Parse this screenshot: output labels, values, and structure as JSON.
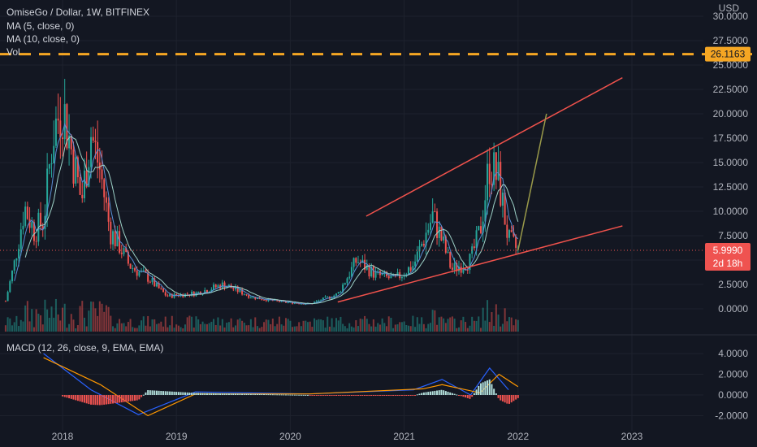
{
  "header": {
    "symbol_line": "OmiseGo / Dollar, 1W, BITFINEX",
    "ma5_label": "MA (5, close, 0)",
    "ma10_label": "MA (10, close, 0)",
    "vol_label": "Vol",
    "currency": "USD"
  },
  "macd": {
    "label": "MACD (12, 26, close, 9, EMA, EMA)"
  },
  "price_tags": {
    "level_value": "26.1163",
    "last_price": "5.9990",
    "countdown": "2d 18h"
  },
  "colors": {
    "background": "#131722",
    "up": "#26a69a",
    "down": "#ef5350",
    "ma5": "#5a8fd6",
    "ma10": "#9ed2c8",
    "level": "#f5a623",
    "trendline": "#f0524c",
    "projection": "#9a9a4a",
    "macd_line": "#2962ff",
    "signal_line": "#ff9800",
    "hist_pos": "#b2dfdb",
    "hist_neg": "#ef5350"
  },
  "chart_data": [
    {
      "type": "candlestick",
      "title": "OmiseGo / Dollar, 1W, BITFINEX",
      "x_axis": {
        "ticks": [
          "2018",
          "2019",
          "2020",
          "2021",
          "2022",
          "2023"
        ]
      },
      "y_axis": {
        "unit": "USD",
        "ticks": [
          "30.0000",
          "27.5000",
          "25.0000",
          "22.5000",
          "20.0000",
          "17.5000",
          "15.0000",
          "12.5000",
          "10.0000",
          "7.5000",
          "5.0000",
          "2.5000",
          "0.0000"
        ],
        "range": [
          -1.2,
          30.5
        ]
      },
      "series": [
        {
          "name": "OMG/USD weekly close",
          "points": [
            [
              "2017-07",
              0.8
            ],
            [
              "2017-08",
              5.0
            ],
            [
              "2017-09",
              10.5
            ],
            [
              "2017-10",
              8.0
            ],
            [
              "2017-11",
              9.0
            ],
            [
              "2017-12",
              18.0
            ],
            [
              "2018-01",
              21.0
            ],
            [
              "2018-02",
              16.0
            ],
            [
              "2018-03",
              11.0
            ],
            [
              "2018-04",
              18.0
            ],
            [
              "2018-05",
              14.0
            ],
            [
              "2018-06",
              8.0
            ],
            [
              "2018-07",
              6.5
            ],
            [
              "2018-08",
              4.5
            ],
            [
              "2018-09",
              3.8
            ],
            [
              "2018-10",
              3.2
            ],
            [
              "2018-11",
              2.2
            ],
            [
              "2018-12",
              1.3
            ],
            [
              "2019-03",
              1.6
            ],
            [
              "2019-06",
              2.5
            ],
            [
              "2019-09",
              1.2
            ],
            [
              "2019-12",
              0.7
            ],
            [
              "2020-03",
              0.5
            ],
            [
              "2020-06",
              1.5
            ],
            [
              "2020-08",
              5.0
            ],
            [
              "2020-10",
              3.5
            ],
            [
              "2020-12",
              3.0
            ],
            [
              "2021-02",
              4.5
            ],
            [
              "2021-04",
              9.5
            ],
            [
              "2021-05",
              7.0
            ],
            [
              "2021-06",
              4.0
            ],
            [
              "2021-08",
              5.0
            ],
            [
              "2021-09",
              8.0
            ],
            [
              "2021-10",
              15.0
            ],
            [
              "2021-11",
              13.0
            ],
            [
              "2021-12",
              7.0
            ],
            [
              "2022-01",
              6.0
            ]
          ]
        },
        {
          "name": "MA (5, close, 0)"
        },
        {
          "name": "MA (10, close, 0)"
        },
        {
          "name": "Vol"
        }
      ],
      "horizontal_level": 26.1163,
      "last_price": 5.999,
      "annotations": [
        {
          "type": "trendline",
          "from": [
            "2020-06",
            0.7
          ],
          "to": [
            "2022-12",
            8.5
          ]
        },
        {
          "type": "trendline",
          "from": [
            "2020-09",
            9.5
          ],
          "to": [
            "2022-12",
            23.7
          ]
        },
        {
          "type": "projection",
          "from": [
            "2022-01",
            6.0
          ],
          "to": [
            "2022-04",
            20.0
          ]
        }
      ]
    },
    {
      "type": "line",
      "title": "MACD (12, 26, close, 9, EMA, EMA)",
      "y_axis": {
        "ticks": [
          "4.0000",
          "2.0000",
          "0.0000",
          "-2.0000"
        ],
        "range": [
          -2.6,
          5.2
        ]
      },
      "series": [
        {
          "name": "MACD",
          "points": [
            [
              "2017-11",
              4.0
            ],
            [
              "2018-04",
              0.5
            ],
            [
              "2018-09",
              -1.9
            ],
            [
              "2019-03",
              0.3
            ],
            [
              "2020-03",
              0.1
            ],
            [
              "2021-02",
              0.5
            ],
            [
              "2021-05",
              1.5
            ],
            [
              "2021-08",
              0.0
            ],
            [
              "2021-10",
              2.6
            ],
            [
              "2021-12",
              0.5
            ]
          ]
        },
        {
          "name": "Signal",
          "points": [
            [
              "2017-11",
              3.6
            ],
            [
              "2018-05",
              1.0
            ],
            [
              "2018-10",
              -2.0
            ],
            [
              "2019-03",
              0.1
            ],
            [
              "2020-03",
              0.1
            ],
            [
              "2021-03",
              0.6
            ],
            [
              "2021-05",
              1.0
            ],
            [
              "2021-09",
              0.2
            ],
            [
              "2021-11",
              2.0
            ],
            [
              "2022-01",
              0.8
            ]
          ]
        }
      ]
    }
  ]
}
